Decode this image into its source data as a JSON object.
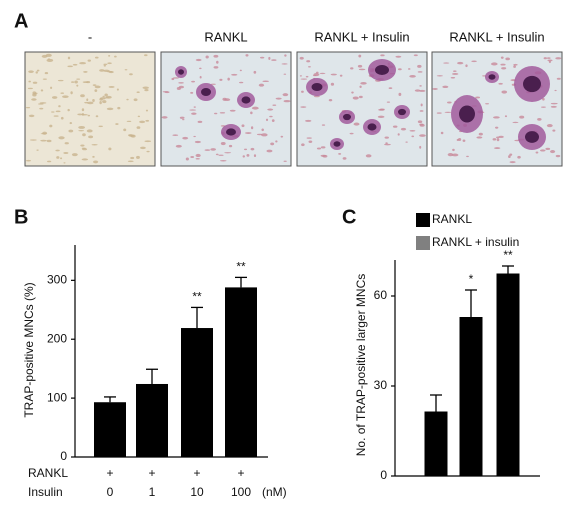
{
  "panel_a": {
    "label": "A",
    "images": [
      {
        "title": "-"
      },
      {
        "title": "RANKL"
      },
      {
        "title": "RANKL + Insulin"
      },
      {
        "title": "RANKL + Insulin"
      }
    ]
  },
  "chart_data": [
    {
      "type": "bar",
      "label": "B",
      "y_label": "TRAP-positive MNCs (%)",
      "row_labels": [
        "RANKL",
        "Insulin"
      ],
      "rankl_marks": [
        "+",
        "+",
        "+",
        "+"
      ],
      "categories": [
        "0",
        "1",
        "10",
        "100"
      ],
      "unit": "(nM)",
      "values": [
        93,
        124,
        219,
        288
      ],
      "errors": [
        9,
        25,
        35,
        17
      ],
      "significance": [
        null,
        null,
        "**",
        "**"
      ],
      "color": "#000000",
      "ylim": [
        0,
        360
      ],
      "yticks": [
        0,
        100,
        200,
        300
      ]
    },
    {
      "type": "bar",
      "label": "C",
      "y_label": "No. of TRAP-positive larger MNCs",
      "legend": [
        {
          "name": "RANKL",
          "color": "#000000"
        },
        {
          "name": "RANKL +  insulin",
          "color": "#808080"
        }
      ],
      "categories": [
        null,
        null,
        null
      ],
      "values": [
        21.5,
        53,
        67.5
      ],
      "errors": [
        5.5,
        9,
        2.5
      ],
      "significance": [
        null,
        "*",
        "**"
      ],
      "color": "#000000",
      "ylim": [
        0,
        72
      ],
      "yticks": [
        0,
        30,
        60
      ]
    }
  ]
}
